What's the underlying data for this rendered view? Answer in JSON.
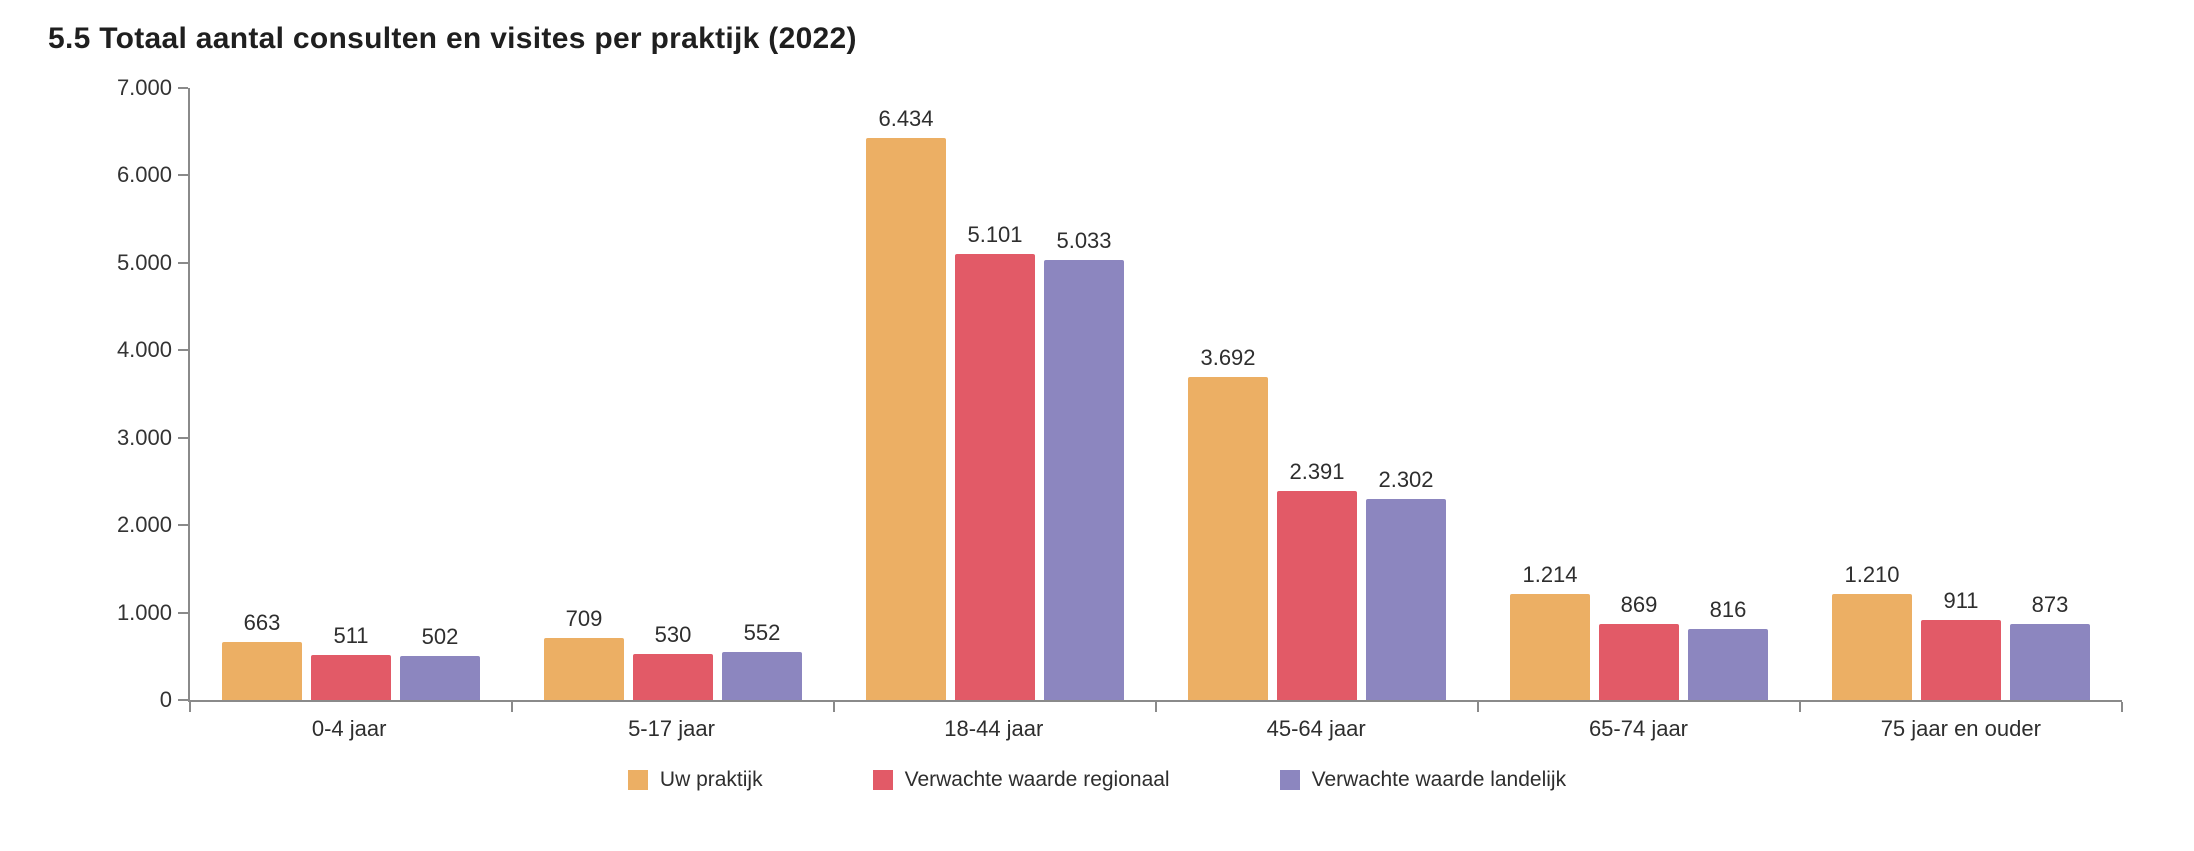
{
  "title": "5.5 Totaal aantal consulten en visites per praktijk (2022)",
  "chart_data": {
    "type": "bar",
    "categories": [
      "0-4 jaar",
      "5-17 jaar",
      "18-44 jaar",
      "45-64 jaar",
      "65-74 jaar",
      "75 jaar en ouder"
    ],
    "series": [
      {
        "name": "Uw praktijk",
        "color": "#ECAF64",
        "values": [
          663,
          709,
          6434,
          3692,
          1214,
          1210
        ],
        "labels": [
          "663",
          "709",
          "6.434",
          "3.692",
          "1.214",
          "1.210"
        ]
      },
      {
        "name": "Verwachte waarde regionaal",
        "color": "#E25A67",
        "values": [
          511,
          530,
          5101,
          2391,
          869,
          911
        ],
        "labels": [
          "511",
          "530",
          "5.101",
          "2.391",
          "869",
          "911"
        ]
      },
      {
        "name": "Verwachte waarde landelijk",
        "color": "#8C86BF",
        "values": [
          502,
          552,
          5033,
          2302,
          816,
          873
        ],
        "labels": [
          "502",
          "552",
          "5.033",
          "2.302",
          "816",
          "873"
        ]
      }
    ],
    "ylim": [
      0,
      7000
    ],
    "ytick_step": 1000,
    "ytick_labels": [
      "0",
      "1.000",
      "2.000",
      "3.000",
      "4.000",
      "5.000",
      "6.000",
      "7.000"
    ],
    "grid": false,
    "legend_position": "bottom",
    "axis_color": "#8a8a8a"
  }
}
